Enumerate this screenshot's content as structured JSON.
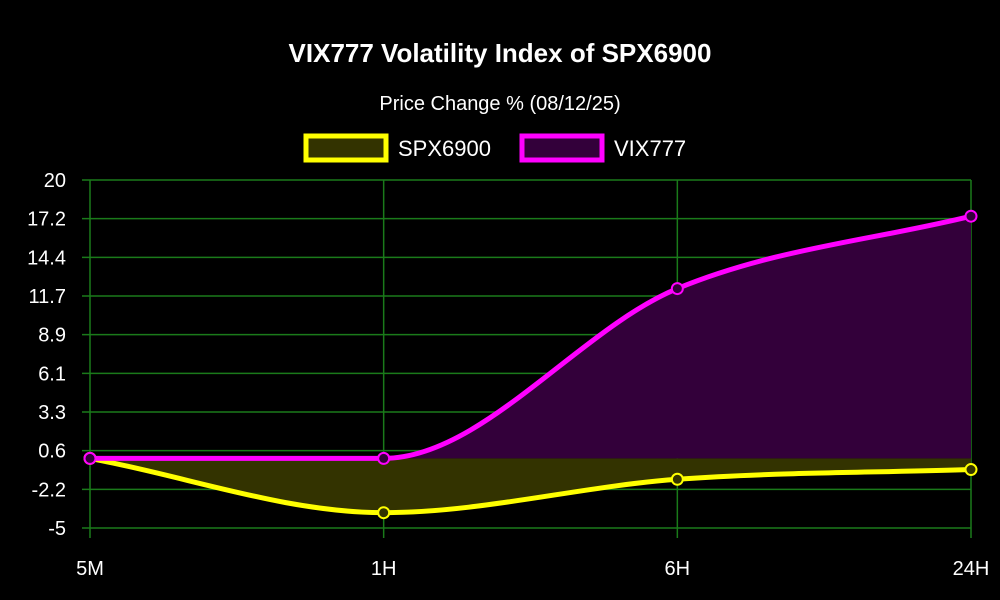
{
  "chart_data": {
    "type": "line",
    "title": "VIX777 Volatility Index of SPX6900",
    "subtitle": "Price Change % (08/12/25)",
    "categories": [
      "5M",
      "1H",
      "6H",
      "24H"
    ],
    "yticks": [
      "-5",
      "-2.2",
      "0.6",
      "3.3",
      "6.1",
      "8.9",
      "11.7",
      "14.4",
      "17.2",
      "20"
    ],
    "ylim": [
      -5,
      20
    ],
    "grid": true,
    "legend_position": "top",
    "series": [
      {
        "name": "SPX6900",
        "values": [
          0.0,
          -3.9,
          -1.5,
          -0.8
        ],
        "color": "#ffff00",
        "fill": "#333300"
      },
      {
        "name": "VIX777",
        "values": [
          0.0,
          0.0,
          12.2,
          17.4
        ],
        "color": "#ff00ff",
        "fill": "#33003a"
      }
    ],
    "grid_color": "#1a7a1a"
  }
}
